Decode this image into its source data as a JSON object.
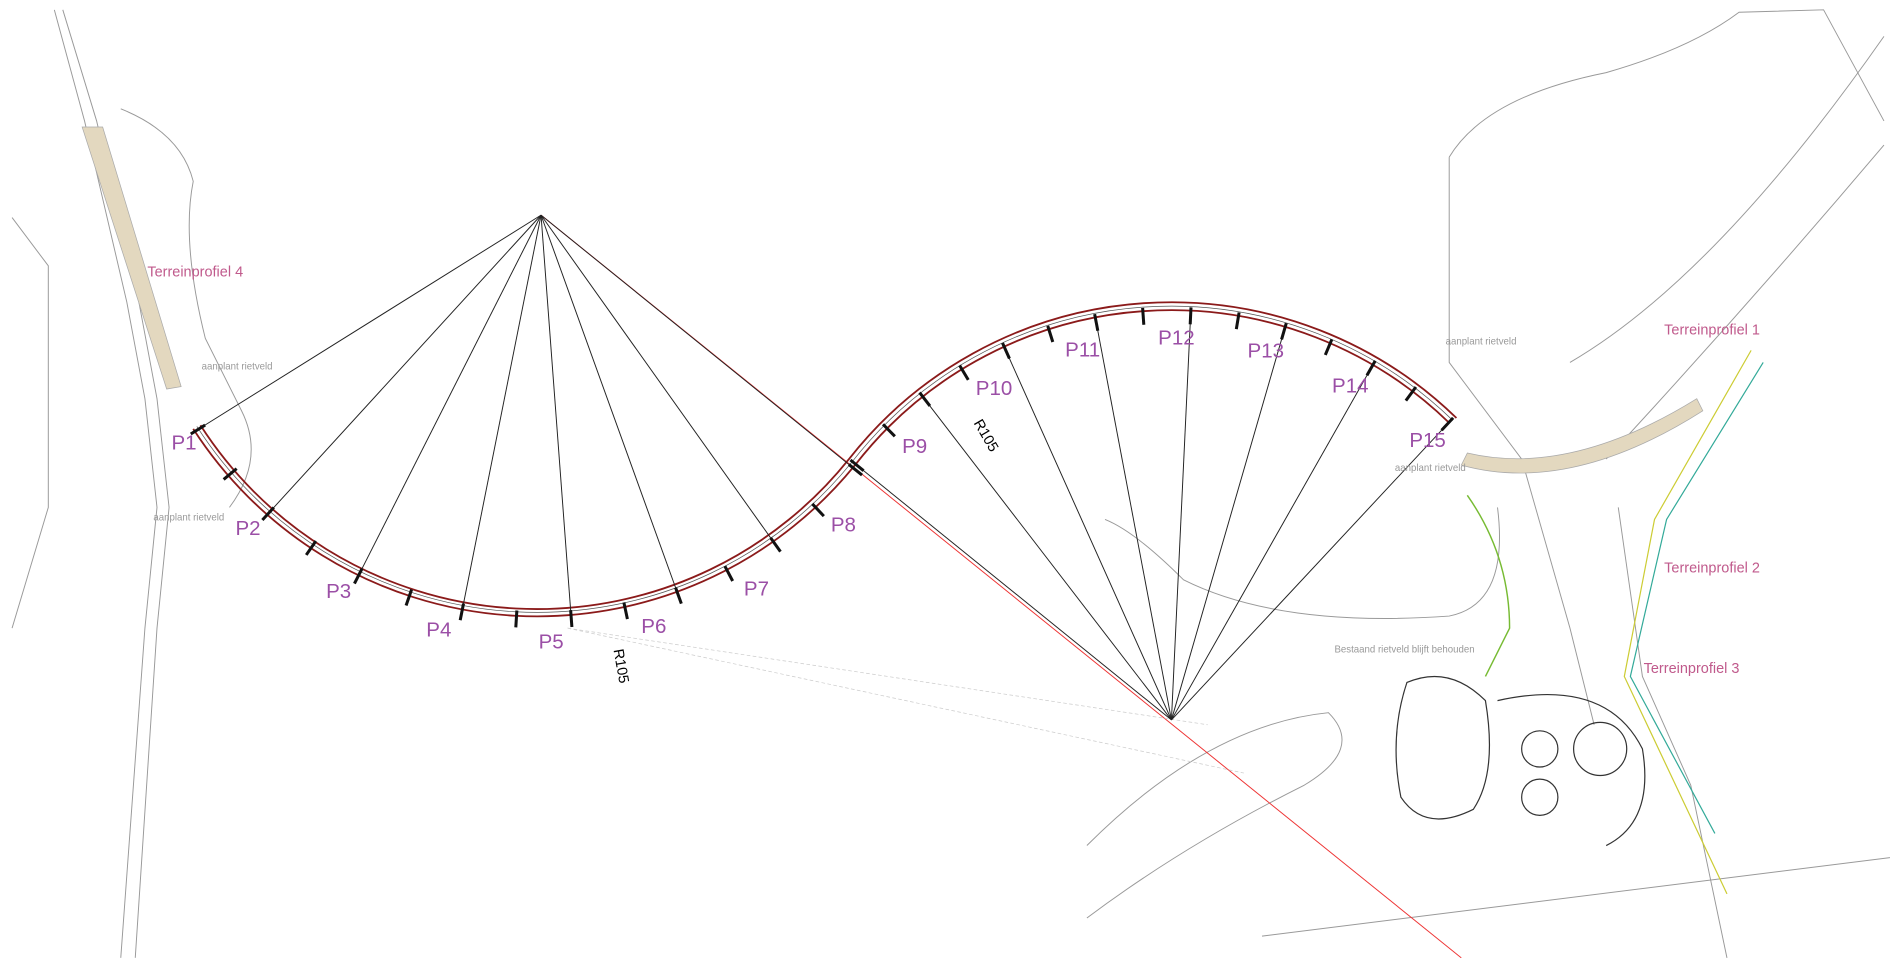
{
  "pillars": [
    "P1",
    "P2",
    "P3",
    "P4",
    "P5",
    "P6",
    "P7",
    "P8",
    "P9",
    "P10",
    "P11",
    "P12",
    "P13",
    "P14",
    "P15"
  ],
  "radius_labels": [
    "R105",
    "R105"
  ],
  "terrain_profiles": [
    "Terreinprofiel 1",
    "Terreinprofiel 2",
    "Terreinprofiel 3",
    "Terreinprofiel 4"
  ],
  "area_labels": [
    "aanplant rietveld",
    "aanplant rietveld",
    "aanplant rietveld",
    "aanplant rietveld",
    "Bestaand rietveld blijft behouden"
  ]
}
